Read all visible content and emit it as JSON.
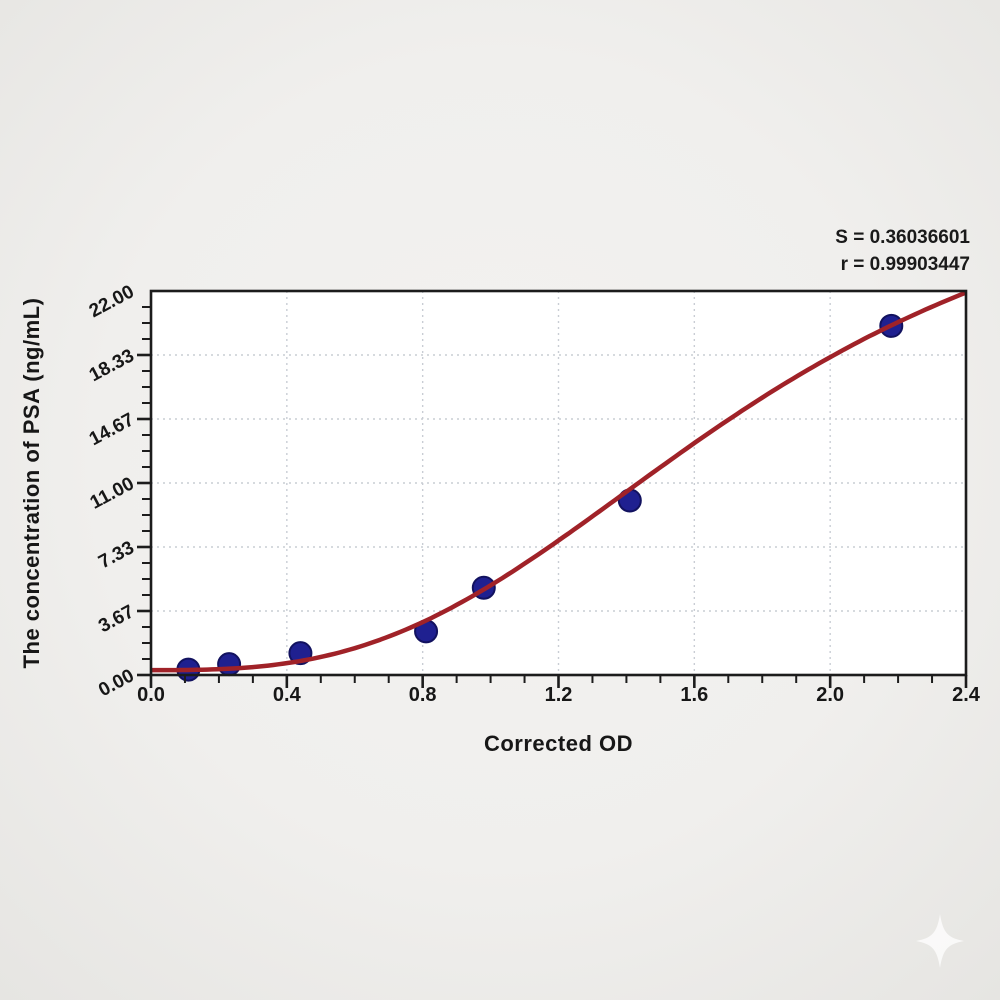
{
  "annotations": {
    "s_label": "S = 0.36036601",
    "r_label": "r = 0.99903447"
  },
  "chart_data": {
    "type": "scatter",
    "title": "",
    "xlabel": "Corrected OD",
    "ylabel": "The concentration of PSA (ng/mL)",
    "xlim": [
      0,
      2.4
    ],
    "ylim": [
      0,
      22
    ],
    "x_ticks": [
      {
        "v": 0.0,
        "label": "0.0"
      },
      {
        "v": 0.4,
        "label": "0.4"
      },
      {
        "v": 0.8,
        "label": "0.8"
      },
      {
        "v": 1.2,
        "label": "1.2"
      },
      {
        "v": 1.6,
        "label": "1.6"
      },
      {
        "v": 2.0,
        "label": "2.0"
      },
      {
        "v": 2.4,
        "label": "2.4"
      }
    ],
    "x_minor_step": 0.1,
    "y_ticks": [
      {
        "v": 0.0,
        "label": "0.00"
      },
      {
        "v": 3.6667,
        "label": "3.67"
      },
      {
        "v": 7.3333,
        "label": "7.33"
      },
      {
        "v": 11.0,
        "label": "11.00"
      },
      {
        "v": 14.6667,
        "label": "14.67"
      },
      {
        "v": 18.3333,
        "label": "18.33"
      },
      {
        "v": 22.0,
        "label": "22.00"
      }
    ],
    "y_minor_step": 0.91667,
    "grid": "dotted-major",
    "legend": "none",
    "points": [
      {
        "x": 0.11,
        "y": 0.31
      },
      {
        "x": 0.23,
        "y": 0.62
      },
      {
        "x": 0.44,
        "y": 1.25
      },
      {
        "x": 0.81,
        "y": 2.5
      },
      {
        "x": 0.98,
        "y": 5.0
      },
      {
        "x": 1.41,
        "y": 10.0
      },
      {
        "x": 2.18,
        "y": 20.0
      }
    ],
    "fit_curve": {
      "type": "4PL",
      "a": 0.28,
      "b": 2.9,
      "c": 1.78,
      "d": 31.0
    },
    "fit_stats": {
      "S": "0.36036601",
      "r": "0.99903447"
    },
    "colors": {
      "curve": "#a02228",
      "point_fill": "#1f2090",
      "point_edge": "#12125f",
      "grid": "#c9cdd4",
      "axis": "#1c1c1c",
      "plot_bg": "#ffffff",
      "page_bg": "#efeeec",
      "text": "#171717"
    }
  },
  "watermark": {
    "name": "sparkle",
    "color": "#ffffff"
  }
}
